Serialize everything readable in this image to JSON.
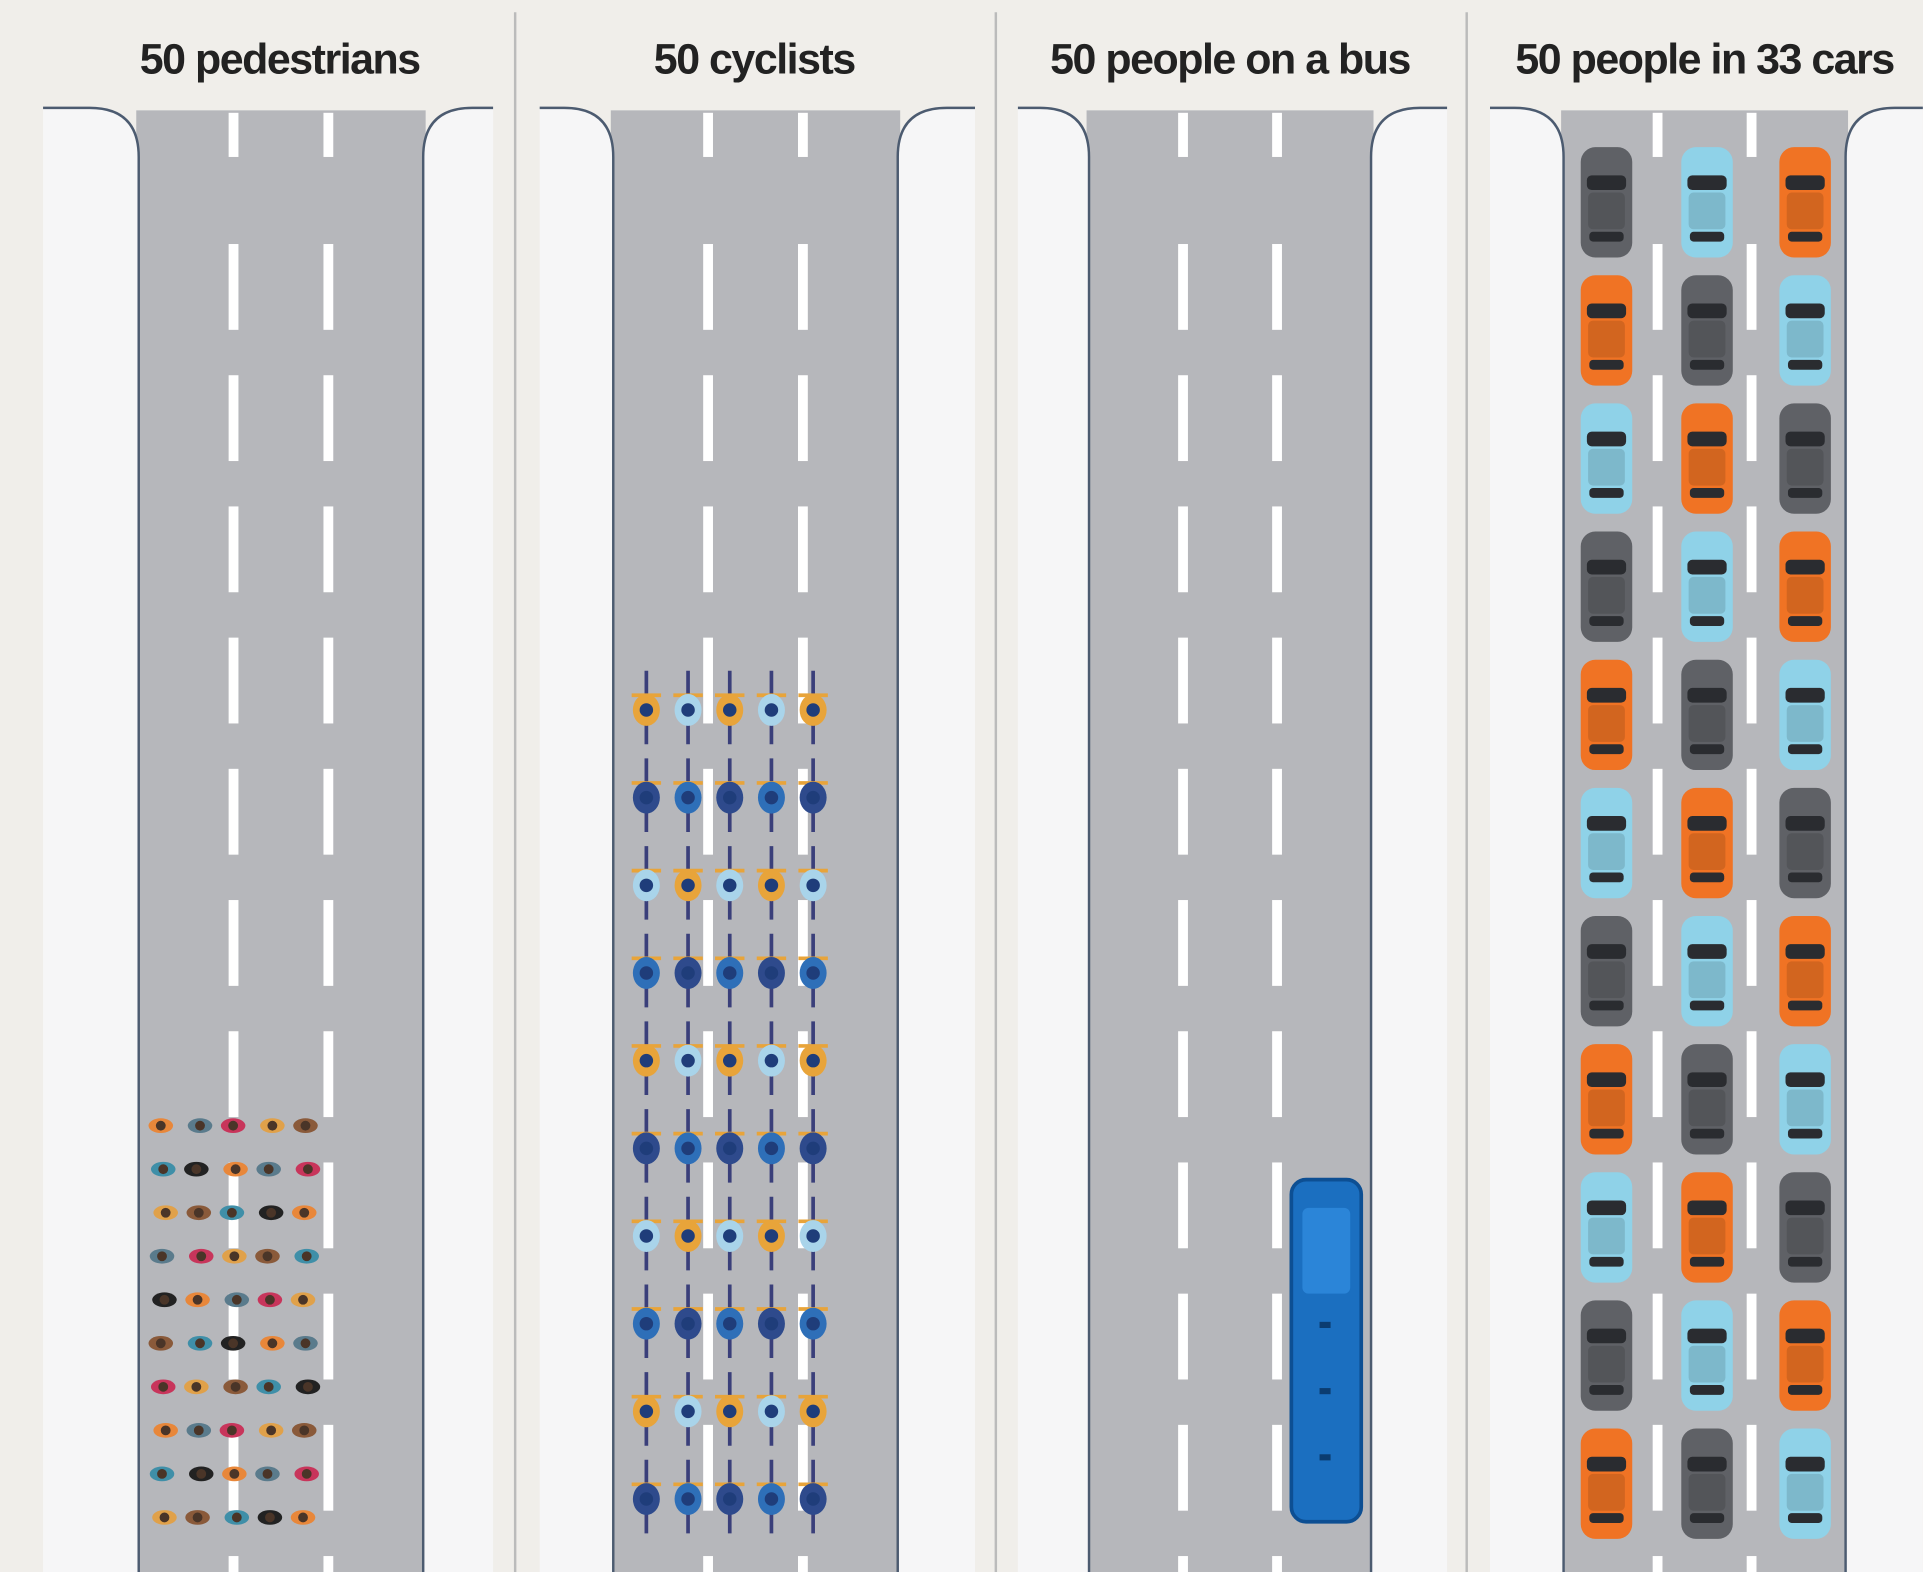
{
  "panels": [
    {
      "title": "50 pedestrians"
    },
    {
      "title": "50 cyclists"
    },
    {
      "title": "50 people on a bus"
    },
    {
      "title": "50 people in 33 cars"
    }
  ]
}
